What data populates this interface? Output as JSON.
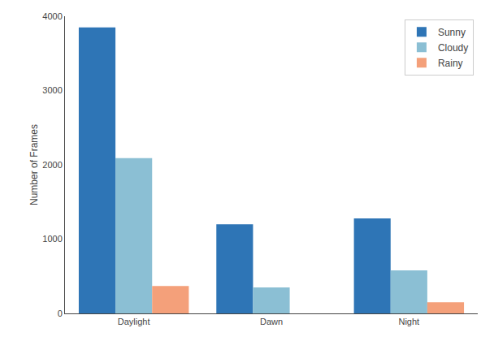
{
  "chart_data": {
    "type": "bar",
    "ylabel": "Number of Frames",
    "categories": [
      "Daylight",
      "Dawn",
      "Night"
    ],
    "series": [
      {
        "name": "Sunny",
        "color": "#2E75B6",
        "values": [
          3850,
          1200,
          1280
        ]
      },
      {
        "name": "Cloudy",
        "color": "#8BBFD4",
        "values": [
          2090,
          350,
          580
        ]
      },
      {
        "name": "Rainy",
        "color": "#F4A07A",
        "values": [
          370,
          0,
          150
        ]
      }
    ],
    "ylim": [
      0,
      4000
    ],
    "yticks": [
      0,
      1000,
      2000,
      3000,
      4000
    ],
    "grid": false,
    "legend": "upper right"
  }
}
